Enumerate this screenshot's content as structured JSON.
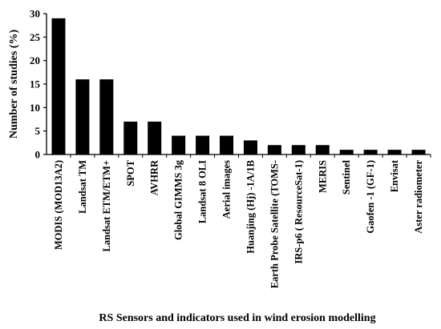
{
  "chart_data": {
    "type": "bar",
    "title": "",
    "xlabel": "RS Sensors and indicators used in wind erosion modelling",
    "ylabel": "Number of studies (%)",
    "ylim": [
      0,
      30
    ],
    "yticks": [
      0,
      5,
      10,
      15,
      20,
      25,
      30
    ],
    "grid": false,
    "bar_color": "#000000",
    "categories": [
      "MODIS (MOD13A2)",
      "Landsat  TM",
      "Landsat ETM/ETM+",
      "SPOT",
      "AVHRR",
      "Global GIMMS 3g",
      "Landsat 8 OLI",
      "Aerial images",
      "Huanjing (Hj) -1A/1B",
      "Earth Probe Satellite (TOMS-",
      "IRS-p6 ( ResourceSat-1)",
      "MERIS",
      "Sentinel",
      "Gaofen -1 (GF-1)",
      "Envisat",
      "Aster radiometer"
    ],
    "values": [
      29,
      16,
      16,
      7,
      7,
      4,
      4,
      4,
      3,
      2,
      2,
      2,
      1,
      1,
      1,
      1
    ]
  }
}
